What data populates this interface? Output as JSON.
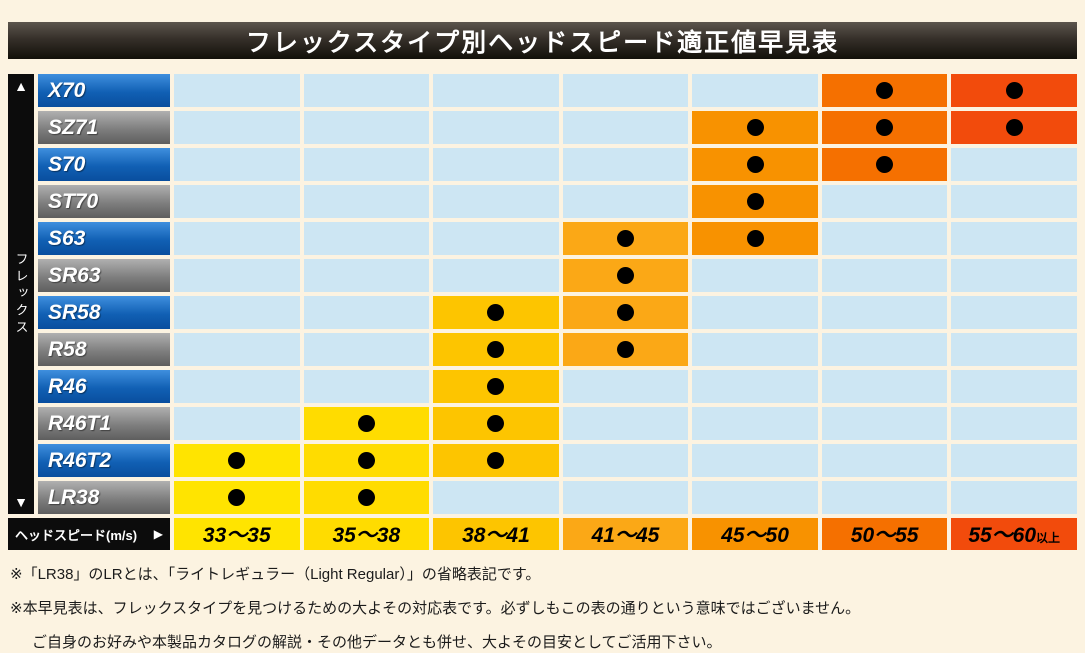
{
  "title": "フレックスタイプ別ヘッドスピード適正値早見表",
  "axis": {
    "up_arrow": "▲",
    "down_arrow": "▼",
    "label": "フレックス"
  },
  "speed_header": {
    "label": "ヘッドスピード(m/s)",
    "arrow": "▶"
  },
  "colors": {
    "page_bg": "#fcf3e1",
    "cell_empty": "#cde6f3",
    "dot": "#000000",
    "label_blue": "#1160b4",
    "label_gray": "#7e7e7e",
    "axis_bar": "#0c0c0c"
  },
  "columns": [
    {
      "label": "33～35",
      "suffix": "",
      "color": "#ffe400"
    },
    {
      "label": "35～38",
      "suffix": "",
      "color": "#ffdc00"
    },
    {
      "label": "38～41",
      "suffix": "",
      "color": "#fdc500"
    },
    {
      "label": "41～45",
      "suffix": "",
      "color": "#fba816"
    },
    {
      "label": "45～50",
      "suffix": "",
      "color": "#f89200"
    },
    {
      "label": "50～55",
      "suffix": "",
      "color": "#f57000"
    },
    {
      "label": "55～60",
      "suffix": "以上",
      "color": "#f24b0c"
    }
  ],
  "rows": [
    {
      "label": "X70",
      "style": "blue",
      "cells": [
        0,
        0,
        0,
        0,
        0,
        1,
        1
      ]
    },
    {
      "label": "SZ71",
      "style": "gray",
      "cells": [
        0,
        0,
        0,
        0,
        1,
        1,
        1
      ]
    },
    {
      "label": "S70",
      "style": "blue",
      "cells": [
        0,
        0,
        0,
        0,
        1,
        1,
        0
      ]
    },
    {
      "label": "ST70",
      "style": "gray",
      "cells": [
        0,
        0,
        0,
        0,
        1,
        0,
        0
      ]
    },
    {
      "label": "S63",
      "style": "blue",
      "cells": [
        0,
        0,
        0,
        1,
        1,
        0,
        0
      ]
    },
    {
      "label": "SR63",
      "style": "gray",
      "cells": [
        0,
        0,
        0,
        1,
        0,
        0,
        0
      ]
    },
    {
      "label": "SR58",
      "style": "blue",
      "cells": [
        0,
        0,
        1,
        1,
        0,
        0,
        0
      ]
    },
    {
      "label": "R58",
      "style": "gray",
      "cells": [
        0,
        0,
        1,
        1,
        0,
        0,
        0
      ]
    },
    {
      "label": "R46",
      "style": "blue",
      "cells": [
        0,
        0,
        1,
        0,
        0,
        0,
        0
      ]
    },
    {
      "label": "R46T1",
      "style": "gray",
      "cells": [
        0,
        1,
        1,
        0,
        0,
        0,
        0
      ]
    },
    {
      "label": "R46T2",
      "style": "blue",
      "cells": [
        1,
        1,
        1,
        0,
        0,
        0,
        0
      ]
    },
    {
      "label": "LR38",
      "style": "gray",
      "cells": [
        1,
        1,
        0,
        0,
        0,
        0,
        0
      ]
    }
  ],
  "footnotes": [
    "※「LR38」のLRとは、「ライトレギュラー（Light Regular）」の省略表記です。",
    "※本早見表は、フレックスタイプを見つけるための大よその対応表です。必ずしもこの表の通りという意味ではございません。",
    "ご自身のお好みや本製品カタログの解説・その他データとも併せ、大よその目安としてご活用下さい。"
  ],
  "chart_data": {
    "type": "table",
    "title": "フレックスタイプ別ヘッドスピード適正値早見表",
    "row_axis_label": "フレックス",
    "column_axis_label": "ヘッドスピード(m/s)",
    "columns": [
      "33～35",
      "35～38",
      "38～41",
      "41～45",
      "45～50",
      "50～55",
      "55～60以上"
    ],
    "rows": [
      {
        "flex": "X70",
        "applicable_ranges": [
          "50～55",
          "55～60以上"
        ]
      },
      {
        "flex": "SZ71",
        "applicable_ranges": [
          "45～50",
          "50～55",
          "55～60以上"
        ]
      },
      {
        "flex": "S70",
        "applicable_ranges": [
          "45～50",
          "50～55"
        ]
      },
      {
        "flex": "ST70",
        "applicable_ranges": [
          "45～50"
        ]
      },
      {
        "flex": "S63",
        "applicable_ranges": [
          "41～45",
          "45～50"
        ]
      },
      {
        "flex": "SR63",
        "applicable_ranges": [
          "41～45"
        ]
      },
      {
        "flex": "SR58",
        "applicable_ranges": [
          "38～41",
          "41～45"
        ]
      },
      {
        "flex": "R58",
        "applicable_ranges": [
          "38～41",
          "41～45"
        ]
      },
      {
        "flex": "R46",
        "applicable_ranges": [
          "38～41"
        ]
      },
      {
        "flex": "R46T1",
        "applicable_ranges": [
          "35～38",
          "38～41"
        ]
      },
      {
        "flex": "R46T2",
        "applicable_ranges": [
          "33～35",
          "35～38",
          "38～41"
        ]
      },
      {
        "flex": "LR38",
        "applicable_ranges": [
          "33～35",
          "35～38"
        ]
      }
    ]
  }
}
